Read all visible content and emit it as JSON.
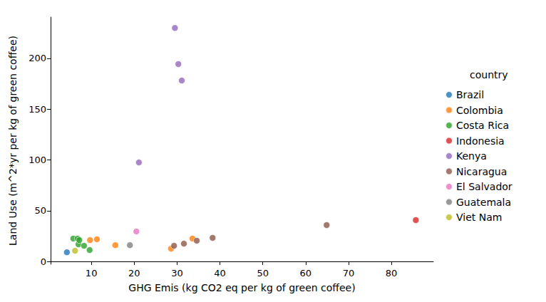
{
  "chart_data": {
    "type": "scatter",
    "x_label": "GHG Emis (kg CO2 eq per kg of green coffee)",
    "y_label": "Land Use (m^2*yr per kg of green coffee)",
    "legend_title": "country",
    "legend": "right",
    "grid": false,
    "marker": "circle",
    "xlim": [
      0.5,
      89.8
    ],
    "ylim": [
      -2.8,
      240.7
    ],
    "xticks": [
      10,
      20,
      30,
      40,
      50,
      60,
      70,
      80
    ],
    "yticks": [
      0,
      50,
      100,
      150,
      200
    ],
    "series": [
      {
        "name": "Brazil",
        "color": "#1f77b4",
        "x": [
          4.3
        ],
        "values": [
          9
        ]
      },
      {
        "name": "Colombia",
        "color": "#ff7f0e",
        "x": [
          15.6,
          9.7,
          11.3,
          28.6,
          33.6
        ],
        "values": [
          16,
          21,
          21.8,
          12.6,
          22.5
        ]
      },
      {
        "name": "Costa Rica",
        "color": "#2ca02c",
        "x": [
          5.8,
          6.8,
          7.0,
          7.2,
          8.3,
          9.6
        ],
        "values": [
          22.5,
          22.5,
          16.8,
          21,
          15.4,
          11.2
        ]
      },
      {
        "name": "Indonesia",
        "color": "#d62728",
        "x": [
          85.7
        ],
        "values": [
          40.7
        ]
      },
      {
        "name": "Kenya",
        "color": "#9467bd",
        "x": [
          29.5,
          30.3,
          31.1,
          21.1
        ],
        "values": [
          230,
          194.4,
          178.2,
          97.5
        ]
      },
      {
        "name": "Nicaragua",
        "color": "#8c564b",
        "x": [
          29.3,
          31.6,
          34.6,
          38.3,
          64.9
        ],
        "values": [
          15.4,
          17.5,
          20.4,
          23.2,
          35.8
        ]
      },
      {
        "name": "El Salvador",
        "color": "#e377c2",
        "x": [
          20.5
        ],
        "values": [
          29.5
        ]
      },
      {
        "name": "Guatemala",
        "color": "#7f7f7f",
        "x": [
          19
        ],
        "values": [
          16
        ]
      },
      {
        "name": "Viet Nam",
        "color": "#bcbd22",
        "x": [
          6.2
        ],
        "values": [
          10.5
        ]
      }
    ]
  }
}
